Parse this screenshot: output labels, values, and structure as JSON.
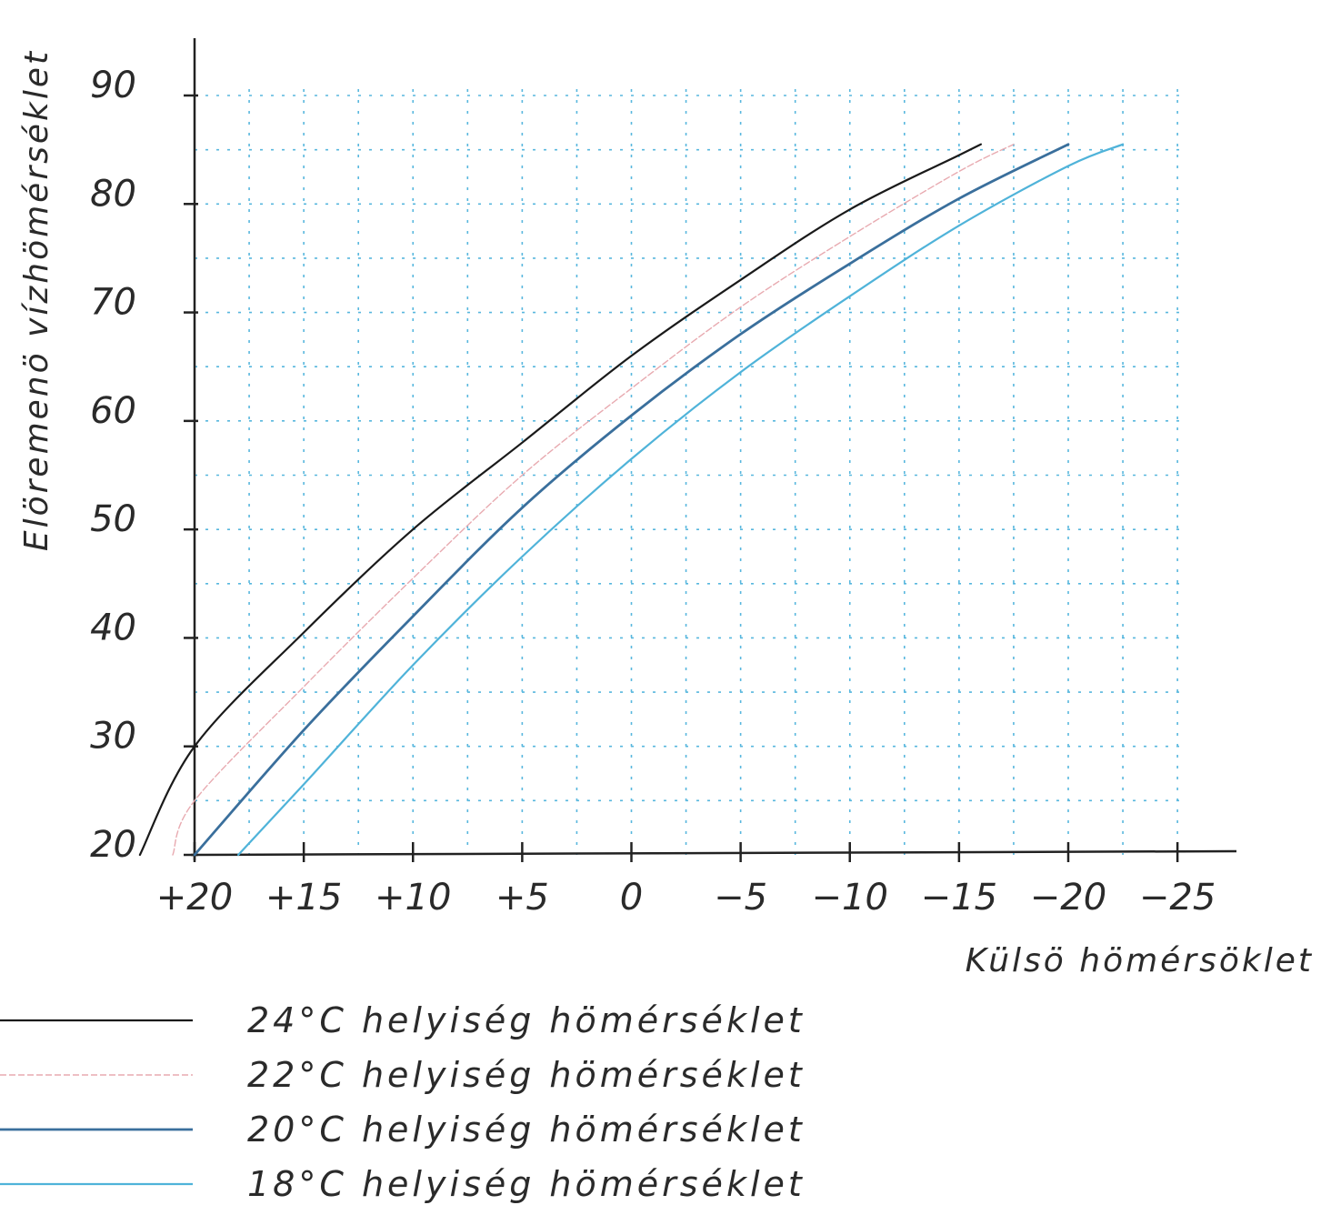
{
  "chart_data": {
    "type": "line",
    "title": "",
    "xlabel": "Külsö hömérsöklet",
    "ylabel": "Elöremenö vízhömérséklet",
    "x_reversed": true,
    "xlim": [
      20,
      -25
    ],
    "ylim": [
      20,
      90
    ],
    "x_ticks": [
      20,
      15,
      10,
      5,
      0,
      -5,
      -10,
      -15,
      -20,
      -25
    ],
    "x_tick_labels": [
      "+20",
      "+15",
      "+10",
      "+5",
      "0",
      "−5",
      "−10",
      "−15",
      "−20",
      "−25"
    ],
    "y_ticks": [
      20,
      30,
      40,
      50,
      60,
      70,
      80,
      90
    ],
    "y_tick_labels": [
      "20",
      "30",
      "40",
      "50",
      "60",
      "70",
      "80",
      "90"
    ],
    "grid": true,
    "legend_position": "bottom-left",
    "series": [
      {
        "name": "24°C helyiség hömérséklet",
        "color": "#1a1a1a",
        "x": [
          22.5,
          20,
          15,
          10,
          5,
          0,
          -5,
          -10,
          -15,
          -16
        ],
        "y": [
          20,
          30,
          40.5,
          50,
          58,
          66,
          73,
          79.5,
          84.5,
          85.5
        ]
      },
      {
        "name": "22°C helyiség hömérséklet",
        "color": "#e8aab0",
        "x": [
          21,
          20,
          15,
          10,
          5,
          0,
          -5,
          -10,
          -15,
          -17.5
        ],
        "y": [
          20,
          25,
          35.5,
          45.5,
          55,
          63,
          70.5,
          77,
          83,
          85.5
        ]
      },
      {
        "name": "20°C helyiség hömérséklet",
        "color": "#3a6f9c",
        "x": [
          20,
          15,
          10,
          5,
          0,
          -5,
          -10,
          -15,
          -20
        ],
        "y": [
          20,
          31.5,
          42,
          52,
          60.5,
          68,
          74.5,
          80.5,
          85.5
        ]
      },
      {
        "name": "18°C helyiség hömérséklet",
        "color": "#4fb3d9",
        "x": [
          18,
          15,
          10,
          5,
          0,
          -5,
          -10,
          -15,
          -20,
          -22.5
        ],
        "y": [
          20,
          26.5,
          37.5,
          47.5,
          56.5,
          64.5,
          71.5,
          78,
          83.5,
          85.5
        ]
      }
    ]
  }
}
